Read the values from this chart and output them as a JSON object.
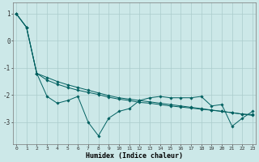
{
  "xlabel": "Humidex (Indice chaleur)",
  "background_color": "#cce8e8",
  "grid_color": "#aacccc",
  "line_color": "#006060",
  "x": [
    0,
    1,
    2,
    3,
    4,
    5,
    6,
    7,
    8,
    9,
    10,
    11,
    12,
    13,
    14,
    15,
    16,
    17,
    18,
    19,
    20,
    21,
    22,
    23
  ],
  "y_jagged": [
    1.0,
    0.5,
    -1.2,
    -2.05,
    -2.3,
    -2.2,
    -2.05,
    -3.0,
    -3.5,
    -2.85,
    -2.6,
    -2.5,
    -2.2,
    -2.1,
    -2.05,
    -2.1,
    -2.1,
    -2.1,
    -2.05,
    -2.4,
    -2.35,
    -3.15,
    -2.85,
    -2.6
  ],
  "y_linear1": [
    1.0,
    0.5,
    -1.2,
    -1.35,
    -1.5,
    -1.62,
    -1.72,
    -1.82,
    -1.92,
    -2.02,
    -2.1,
    -2.15,
    -2.2,
    -2.25,
    -2.3,
    -2.35,
    -2.4,
    -2.45,
    -2.5,
    -2.55,
    -2.6,
    -2.65,
    -2.7,
    -2.72
  ],
  "y_linear2": [
    1.0,
    0.5,
    -1.2,
    -1.45,
    -1.6,
    -1.72,
    -1.82,
    -1.9,
    -1.98,
    -2.08,
    -2.15,
    -2.2,
    -2.27,
    -2.3,
    -2.35,
    -2.4,
    -2.44,
    -2.48,
    -2.52,
    -2.56,
    -2.6,
    -2.65,
    -2.7,
    -2.75
  ],
  "ylim": [
    -3.8,
    1.4
  ],
  "xlim": [
    -0.3,
    23.3
  ],
  "yticks": [
    1,
    0,
    -1,
    -2,
    -3
  ],
  "xticks": [
    0,
    1,
    2,
    3,
    4,
    5,
    6,
    7,
    8,
    9,
    10,
    11,
    12,
    13,
    14,
    15,
    16,
    17,
    18,
    19,
    20,
    21,
    22,
    23
  ],
  "figwidth": 3.2,
  "figheight": 2.0,
  "dpi": 100
}
